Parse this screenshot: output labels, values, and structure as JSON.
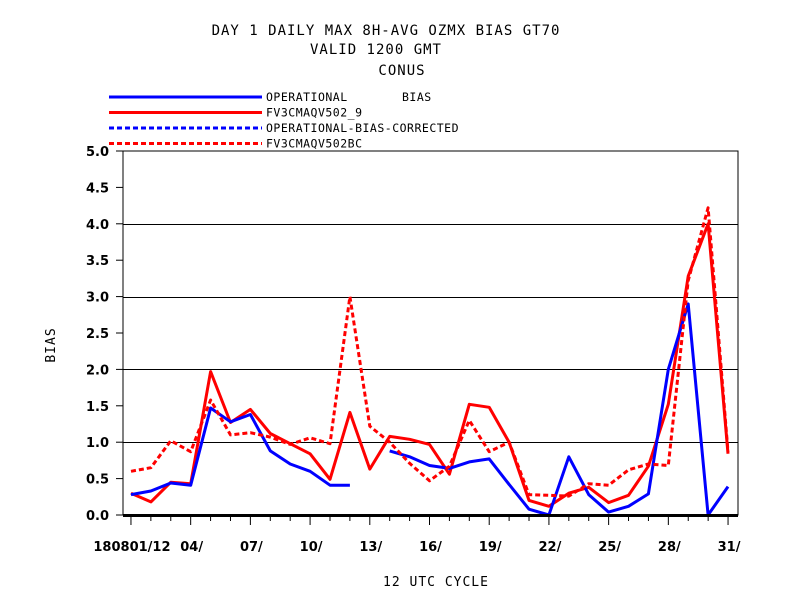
{
  "chart_data": {
    "type": "line",
    "title_lines": [
      "DAY 1 DAILY MAX   8H-AVG OZMX BIAS GT70",
      "VALID 1200 GMT",
      "CONUS"
    ],
    "xlabel": "12 UTC CYCLE",
    "ylabel": "BIAS",
    "xlim": [
      0.6,
      31.5
    ],
    "ylim": [
      0,
      5
    ],
    "yticks": [
      0.0,
      0.5,
      1.0,
      1.5,
      2.0,
      2.5,
      3.0,
      3.5,
      4.0,
      4.5,
      5.0
    ],
    "ytick_labels": [
      "0.0",
      "0.5",
      "1.0",
      "1.5",
      "2.0",
      "2.5",
      "3.0",
      "3.5",
      "4.0",
      "4.5",
      "5.0"
    ],
    "gridlines_at": [
      1.0,
      2.0,
      3.0,
      4.0
    ],
    "xticks": [
      1,
      4,
      7,
      10,
      13,
      16,
      19,
      22,
      25,
      28,
      31
    ],
    "xtick_labels": [
      "180801/12",
      "04/",
      "07/",
      "10/",
      "13/",
      "16/",
      "19/",
      "22/",
      "25/",
      "28/",
      "31/"
    ],
    "legend_position": "top-left",
    "legend_extra": "BIAS",
    "series": [
      {
        "name": "OPERATIONAL",
        "color": "#0000ff",
        "style": "solid",
        "x": [
          1,
          2,
          3,
          4,
          5,
          6,
          7,
          8,
          9,
          10,
          11,
          12,
          null,
          14,
          15,
          16,
          17,
          18,
          19,
          20,
          21,
          22,
          23,
          24,
          25,
          26,
          27,
          28,
          29,
          30,
          31
        ],
        "values": [
          0.28,
          0.33,
          0.44,
          0.41,
          1.47,
          1.28,
          1.38,
          0.88,
          0.7,
          0.6,
          0.41,
          0.41,
          null,
          0.88,
          0.8,
          0.68,
          0.64,
          0.73,
          0.77,
          0.42,
          0.08,
          0.0,
          0.8,
          0.28,
          0.04,
          0.12,
          0.29,
          2.0,
          2.9,
          0.0,
          0.39
        ]
      },
      {
        "name": "FV3CMAQV502_9",
        "color": "#ff0000",
        "style": "solid",
        "x": [
          1,
          2,
          3,
          4,
          5,
          6,
          7,
          8,
          9,
          10,
          11,
          12,
          13,
          14,
          15,
          16,
          17,
          18,
          19,
          20,
          21,
          22,
          23,
          24,
          25,
          26,
          27,
          28,
          29,
          30,
          31
        ],
        "values": [
          0.3,
          0.18,
          0.45,
          0.43,
          1.97,
          1.27,
          1.45,
          1.12,
          0.98,
          0.84,
          0.49,
          1.41,
          0.63,
          1.08,
          1.04,
          0.97,
          0.56,
          1.52,
          1.48,
          1.0,
          0.2,
          0.12,
          0.3,
          0.38,
          0.17,
          0.27,
          0.67,
          1.52,
          3.28,
          4.0,
          0.84
        ]
      },
      {
        "name": "OPERATIONAL-BIAS-CORRECTED",
        "color": "#0000ff",
        "style": "dashed",
        "x": [],
        "values": []
      },
      {
        "name": "FV3CMAQV502BC",
        "color": "#ff0000",
        "style": "dashed",
        "x": [
          1,
          2,
          3,
          4,
          5,
          6,
          7,
          8,
          9,
          10,
          11,
          12,
          13,
          14,
          15,
          16,
          17,
          18,
          19,
          20,
          21,
          22,
          23,
          24,
          25,
          26,
          27,
          28,
          29,
          30,
          31
        ],
        "values": [
          0.6,
          0.65,
          1.02,
          0.87,
          1.58,
          1.1,
          1.13,
          1.07,
          0.97,
          1.06,
          0.98,
          3.0,
          1.22,
          1.0,
          0.71,
          0.47,
          0.67,
          1.3,
          0.87,
          1.0,
          0.28,
          0.27,
          0.26,
          0.43,
          0.41,
          0.62,
          0.7,
          0.68,
          3.22,
          4.22,
          0.87
        ]
      }
    ]
  }
}
